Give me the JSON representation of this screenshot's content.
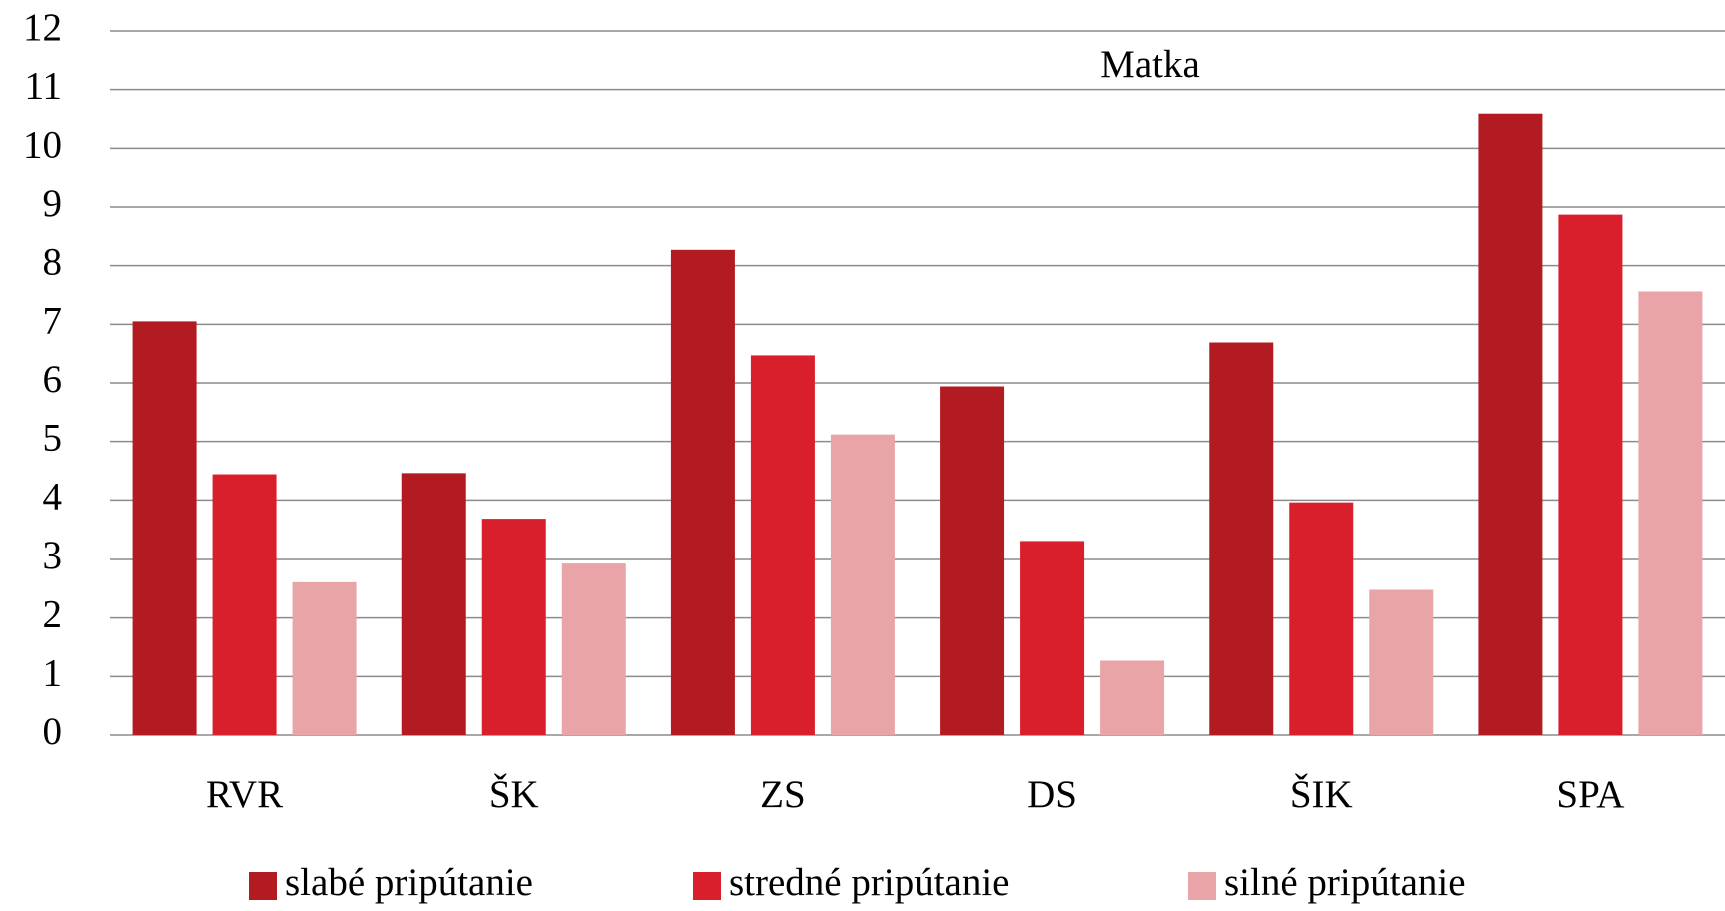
{
  "chart_data": {
    "type": "bar",
    "title": "Matka",
    "categories": [
      "RVR",
      "ŠK",
      "ZS",
      "DS",
      "ŠIK",
      "SPA"
    ],
    "series": [
      {
        "name": "slabé pripútanie",
        "color": "#b31b22",
        "values": [
          7.05,
          4.46,
          8.27,
          5.94,
          6.69,
          10.59
        ]
      },
      {
        "name": "stredné pripútanie",
        "color": "#da1f2c",
        "values": [
          4.44,
          3.68,
          6.47,
          3.3,
          3.96,
          8.87
        ]
      },
      {
        "name": "silné pripútanie",
        "color": "#e8a4a6",
        "values": [
          2.61,
          2.93,
          5.12,
          1.27,
          2.48,
          7.56
        ]
      }
    ],
    "ylim": [
      0,
      12
    ],
    "yticks": [
      0,
      1,
      2,
      3,
      4,
      5,
      6,
      7,
      8,
      9,
      10,
      11,
      12
    ],
    "grid": true,
    "legend": "bottom"
  }
}
